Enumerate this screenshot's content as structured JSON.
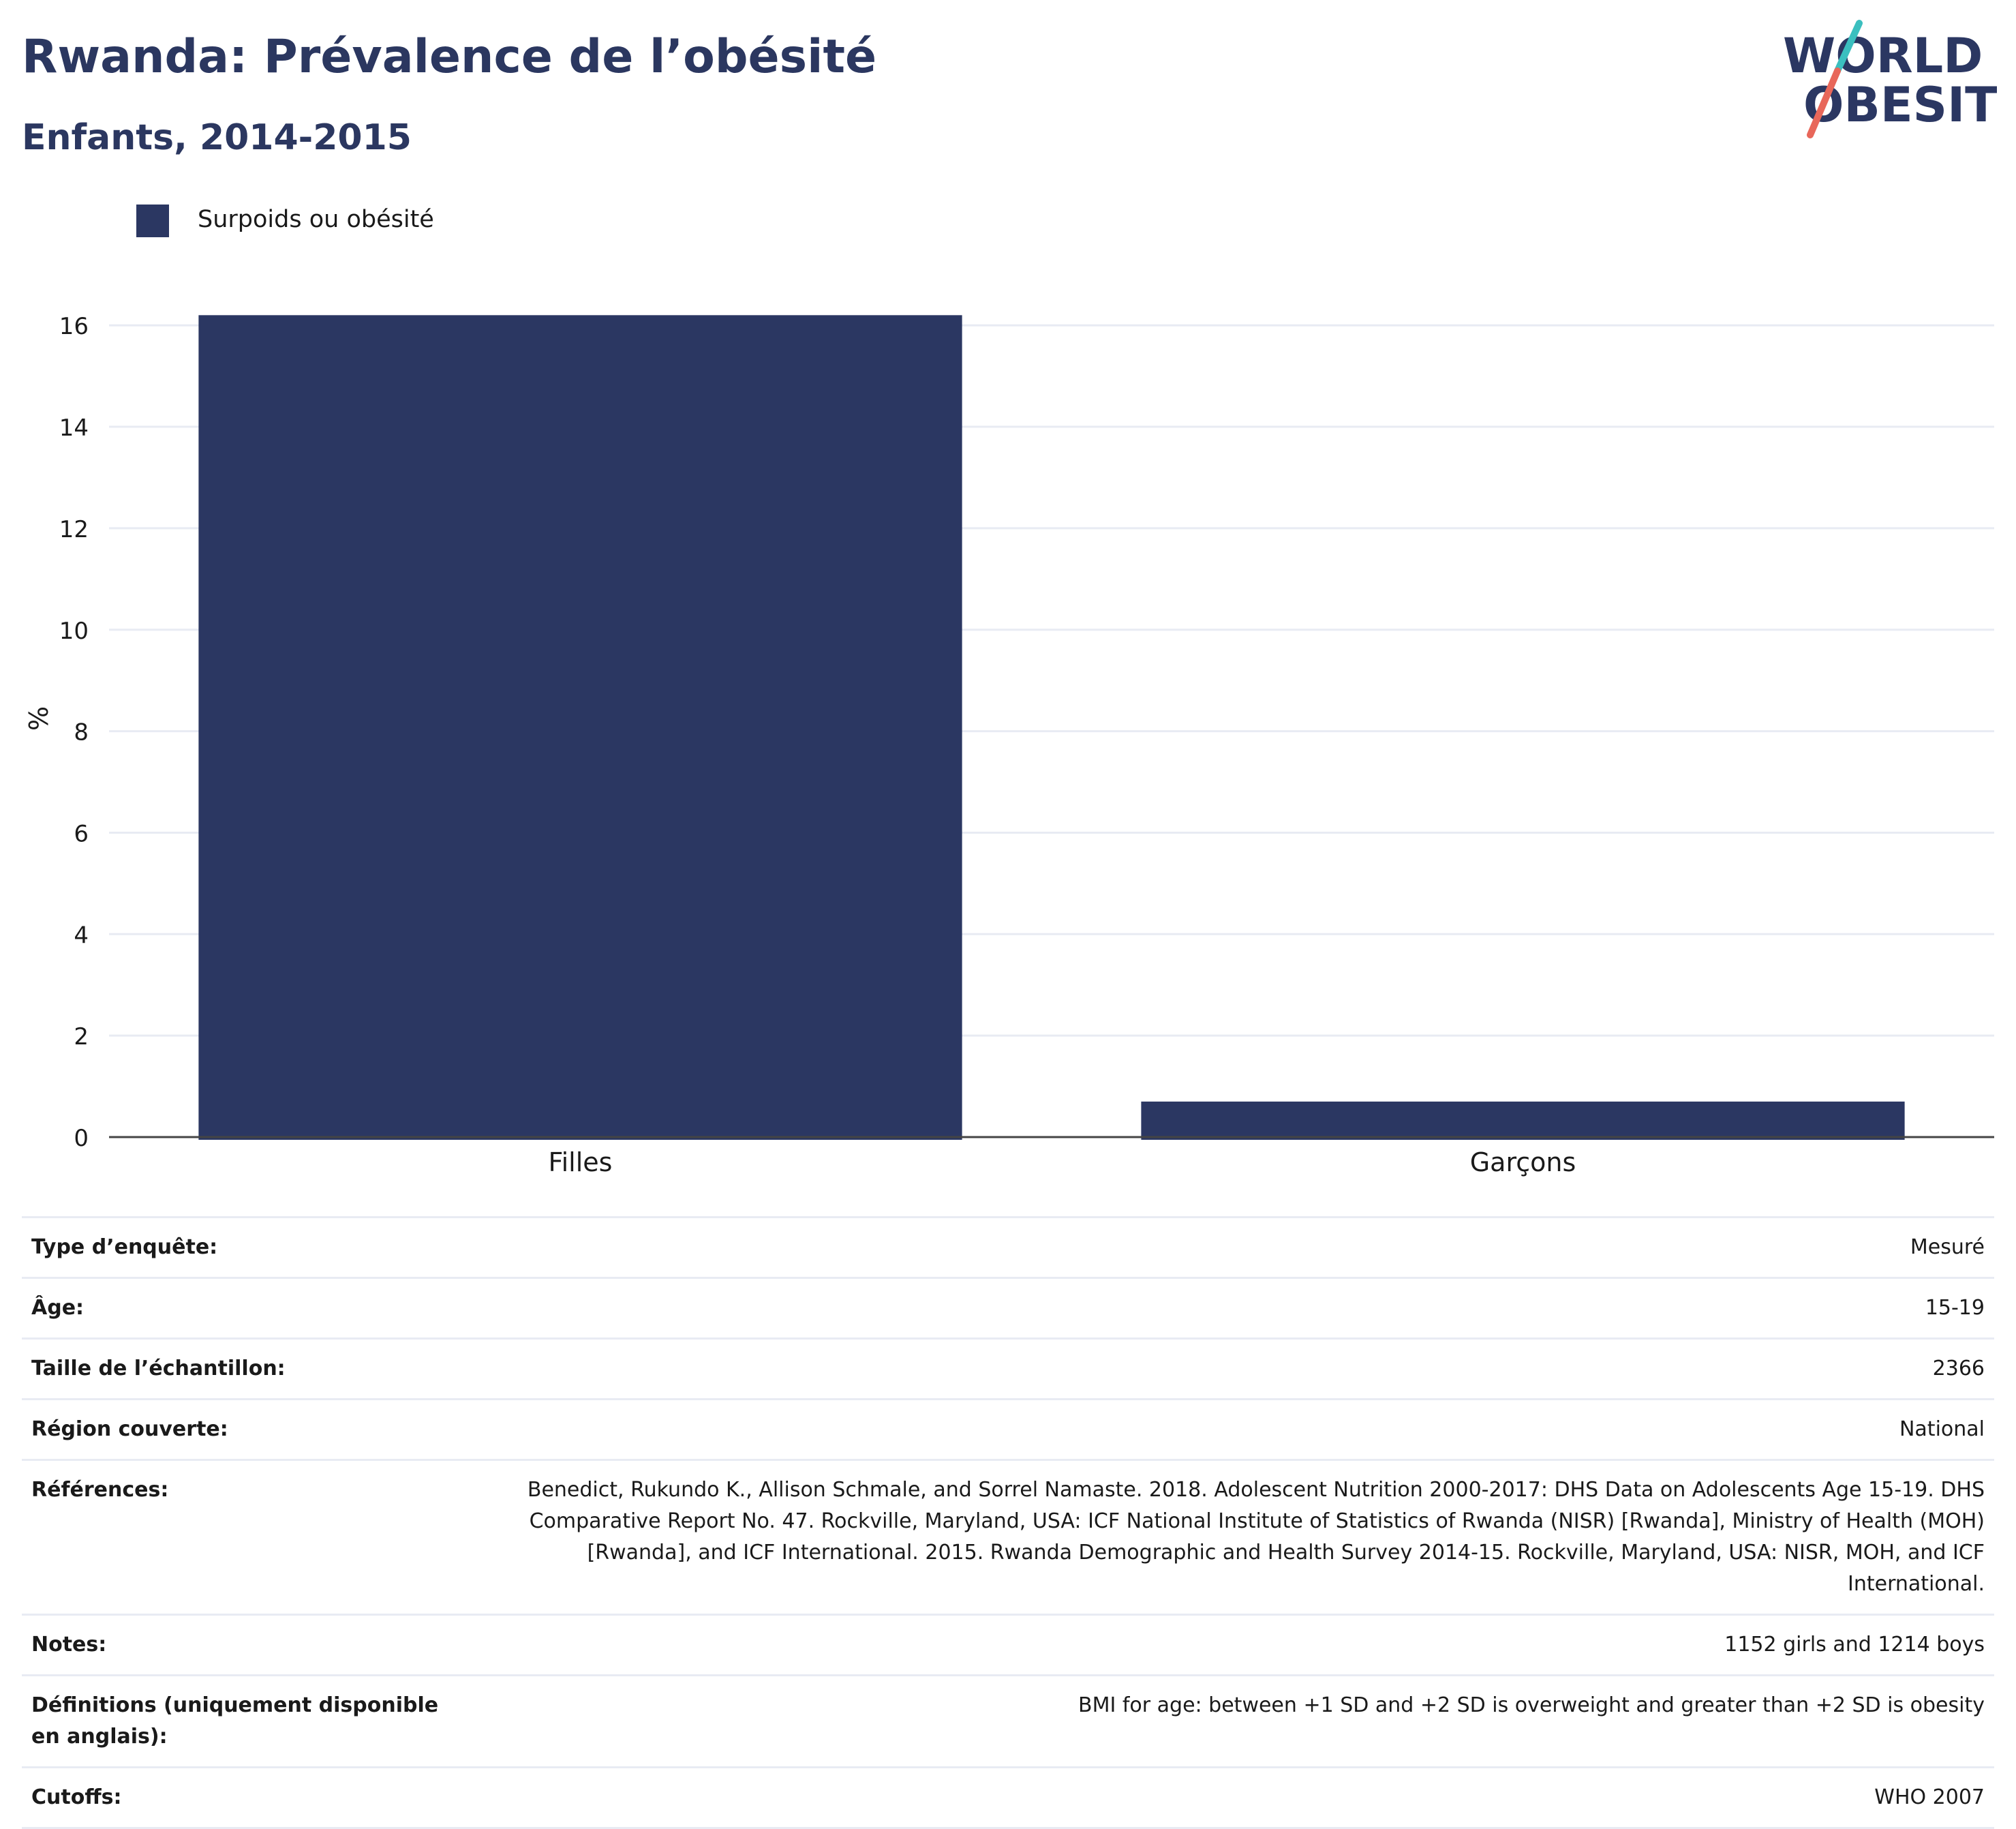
{
  "header": {
    "title": "Rwanda: Prévalence de l’obésité",
    "subtitle": "Enfants, 2014-2015"
  },
  "logo": {
    "line1": "WORLD",
    "line2": "OBESITY",
    "colors": {
      "text": "#2b3762",
      "slash_top": "#3bbfbf",
      "slash_bottom": "#e8675a"
    }
  },
  "colors": {
    "bar": "#2b3762",
    "title": "#2b3760",
    "grid": "#e8ebf3",
    "axis": "#444444"
  },
  "chart_data": {
    "type": "bar",
    "categories": [
      "Filles",
      "Garçons"
    ],
    "series": [
      {
        "name": "Surpoids ou obésité",
        "values": [
          16.2,
          0.7
        ]
      }
    ],
    "xlabel": "",
    "ylabel": "%",
    "ylim": [
      0,
      16.5
    ],
    "yticks": [
      0,
      2,
      4,
      6,
      8,
      10,
      12,
      14,
      16
    ],
    "grid": true,
    "legend_position": "top-left"
  },
  "info": [
    {
      "label": "Type d’enquête:",
      "value": "Mesuré"
    },
    {
      "label": "Âge:",
      "value": "15-19"
    },
    {
      "label": "Taille de l’échantillon:",
      "value": "2366"
    },
    {
      "label": "Région couverte:",
      "value": "National"
    },
    {
      "label": "Références:",
      "value": "Benedict, Rukundo K., Allison Schmale, and Sorrel Namaste. 2018. Adolescent Nutrition 2000-2017: DHS Data on Adolescents Age 15-19. DHS Comparative Report No. 47. Rockville, Maryland, USA: ICF National Institute of Statistics of Rwanda (NISR) [Rwanda], Ministry of Health (MOH) [Rwanda], and ICF International. 2015. Rwanda Demographic and Health Survey 2014-15. Rockville, Maryland, USA: NISR, MOH, and ICF International."
    },
    {
      "label": "Notes:",
      "value": "1152 girls and 1214 boys"
    },
    {
      "label": "Définitions (uniquement disponible en anglais):",
      "value": "BMI for age: between +1 SD and +2 SD is overweight and greater than +2 SD is obesity"
    },
    {
      "label": "Cutoffs:",
      "value": "WHO 2007"
    }
  ]
}
